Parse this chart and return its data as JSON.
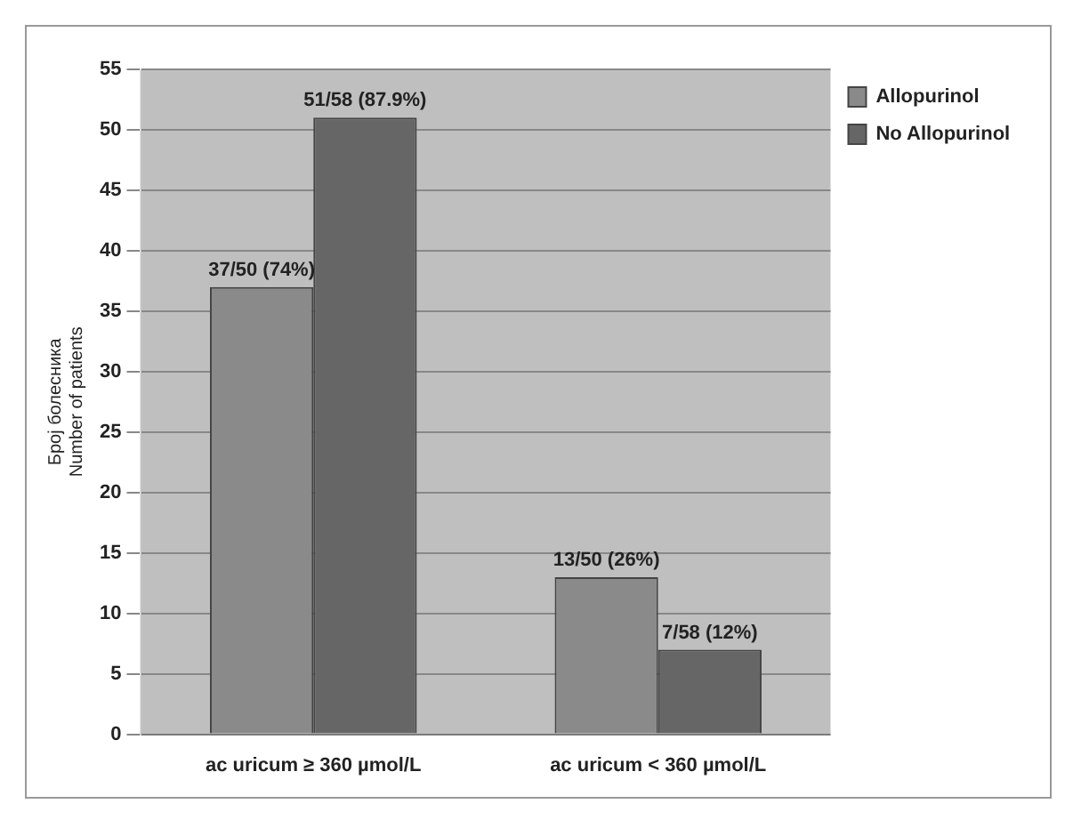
{
  "chart_data": {
    "type": "bar",
    "ylabel": "Број болесника\nNumber of patients",
    "categories": [
      "ac uricum ≥ 360 µmol/L",
      "ac uricum < 360 µmol/L"
    ],
    "series": [
      {
        "name": "Allopurinol",
        "color": "#8a8a8a",
        "values": [
          37,
          13
        ],
        "value_labels": [
          "37/50 (74%)",
          "13/50 (26%)"
        ]
      },
      {
        "name": "No Allopurinol",
        "color": "#666666",
        "values": [
          51,
          7
        ],
        "value_labels": [
          "51/58 (87.9%)",
          "7/58 (12%)"
        ]
      }
    ],
    "ylim": [
      0,
      55
    ],
    "yticks": [
      0,
      5,
      10,
      15,
      20,
      25,
      30,
      35,
      40,
      45,
      50,
      55
    ],
    "grid": "y",
    "legend": "right"
  }
}
